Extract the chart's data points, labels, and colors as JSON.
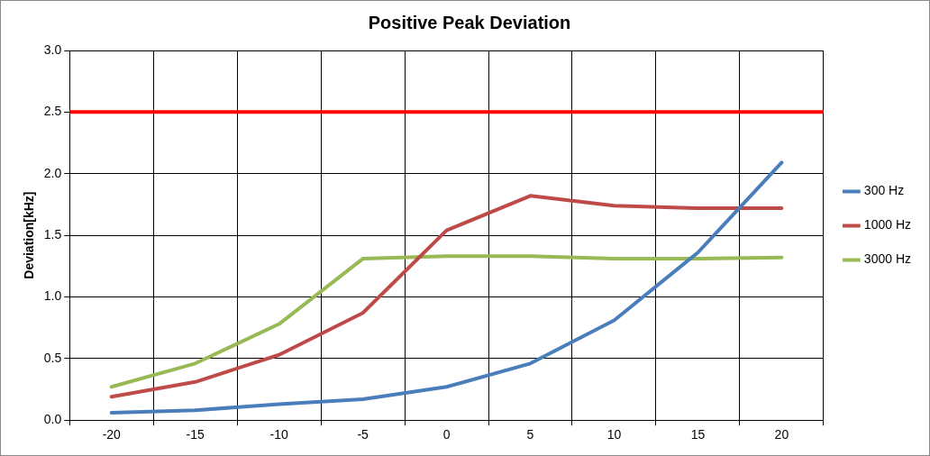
{
  "chart_data": {
    "type": "line",
    "title": "Positive Peak Deviation",
    "ylabel": "Deviation[kHz]",
    "categories": [
      "-20",
      "-15",
      "-10",
      "-5",
      "0",
      "5",
      "10",
      "15",
      "20"
    ],
    "series": [
      {
        "name": "300 Hz",
        "color": "#4a7ebb",
        "values": [
          0.06,
          0.08,
          0.13,
          0.17,
          0.27,
          0.46,
          0.81,
          1.36,
          2.09
        ]
      },
      {
        "name": "1000 Hz",
        "color": "#be4b48",
        "values": [
          0.19,
          0.31,
          0.53,
          0.87,
          1.54,
          1.82,
          1.74,
          1.72,
          1.72
        ]
      },
      {
        "name": "3000 Hz",
        "color": "#98b954",
        "values": [
          0.27,
          0.46,
          0.78,
          1.31,
          1.33,
          1.33,
          1.31,
          1.31,
          1.32
        ]
      }
    ],
    "ylim": [
      0,
      3
    ],
    "yticks": [
      {
        "value": 0,
        "label": "0.0"
      },
      {
        "value": 0.5,
        "label": "0.5"
      },
      {
        "value": 1,
        "label": "1.0"
      },
      {
        "value": 1.5,
        "label": "1.5"
      },
      {
        "value": 2,
        "label": "2.0"
      },
      {
        "value": 2.5,
        "label": "2.5"
      },
      {
        "value": 3,
        "label": "3.0"
      }
    ],
    "grid": true,
    "legend": "right",
    "marker": "none",
    "line_style": "solid",
    "ref_lines": [
      {
        "axis": "y",
        "value": 2.5,
        "color": "#ff0000"
      }
    ]
  }
}
